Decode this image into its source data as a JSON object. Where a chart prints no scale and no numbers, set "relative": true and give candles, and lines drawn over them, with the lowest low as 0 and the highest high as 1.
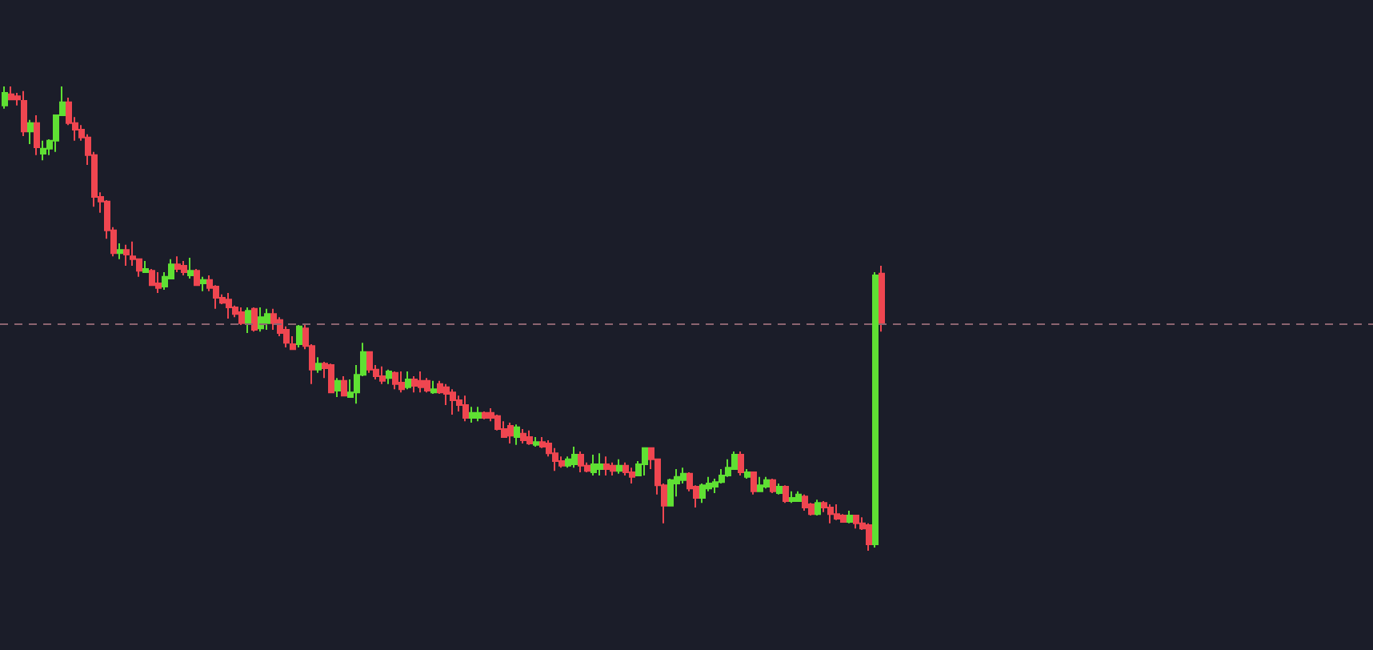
{
  "chart_data": {
    "type": "candlestick",
    "relative": true,
    "categories": [
      null,
      null,
      null,
      null,
      null,
      null,
      null,
      null,
      null,
      null,
      null,
      null,
      null,
      null,
      null,
      null,
      null,
      null,
      null,
      null,
      null,
      null,
      null,
      null,
      null,
      null,
      null,
      null,
      null,
      null,
      null,
      null,
      null,
      null,
      null,
      null,
      null,
      null,
      null,
      null,
      null,
      null,
      null,
      null,
      null,
      null,
      null,
      null,
      null,
      null,
      null,
      null,
      null,
      null,
      null,
      null,
      null,
      null,
      null,
      null,
      null,
      null,
      null,
      null,
      null,
      null,
      null,
      null,
      null,
      null,
      null,
      null,
      null,
      null,
      null,
      null,
      null,
      null,
      null,
      null,
      null,
      null,
      null,
      null,
      null,
      null,
      null,
      null,
      null,
      null,
      null,
      null,
      null,
      null,
      null,
      null,
      null,
      null,
      null,
      null,
      null,
      null,
      null,
      null,
      null,
      null,
      null,
      null,
      null,
      null,
      null,
      null,
      null,
      null,
      null,
      null,
      null,
      null,
      null,
      null,
      null,
      null,
      null,
      null,
      null,
      null,
      null,
      null,
      null,
      null,
      null,
      null,
      null,
      null,
      null,
      null,
      null,
      null
    ],
    "ohlc": [
      [
        0.959,
        1,
        0.952,
        0.986
      ],
      [
        0.983,
        1,
        0.972,
        0.972
      ],
      [
        0.979,
        0.986,
        0.959,
        0.972
      ],
      [
        0.969,
        0.99,
        0.893,
        0.903
      ],
      [
        0.903,
        0.928,
        0.876,
        0.921
      ],
      [
        0.921,
        0.938,
        0.852,
        0.869
      ],
      [
        0.855,
        0.883,
        0.841,
        0.866
      ],
      [
        0.866,
        0.886,
        0.852,
        0.883
      ],
      [
        0.883,
        0.938,
        0.859,
        0.938
      ],
      [
        0.938,
        1,
        0.938,
        0.966
      ],
      [
        0.966,
        0.976,
        0.917,
        0.921
      ],
      [
        0.921,
        0.934,
        0.883,
        0.907
      ],
      [
        0.907,
        0.917,
        0.883,
        0.89
      ],
      [
        0.89,
        0.897,
        0.831,
        0.852
      ],
      [
        0.852,
        0.859,
        0.741,
        0.762
      ],
      [
        0.762,
        0.772,
        0.728,
        0.752
      ],
      [
        0.752,
        0.755,
        0.672,
        0.69
      ],
      [
        0.69,
        0.697,
        0.634,
        0.641
      ],
      [
        0.641,
        0.662,
        0.628,
        0.648
      ],
      [
        0.648,
        0.659,
        0.614,
        0.638
      ],
      [
        0.634,
        0.666,
        0.614,
        0.628
      ],
      [
        0.628,
        0.628,
        0.59,
        0.603
      ],
      [
        0.6,
        0.624,
        0.6,
        0.607
      ],
      [
        0.603,
        0.607,
        0.572,
        0.572
      ],
      [
        0.576,
        0.6,
        0.555,
        0.566
      ],
      [
        0.569,
        0.6,
        0.562,
        0.59
      ],
      [
        0.586,
        0.628,
        0.586,
        0.617
      ],
      [
        0.617,
        0.634,
        0.6,
        0.607
      ],
      [
        0.614,
        0.624,
        0.593,
        0.6
      ],
      [
        0.593,
        0.631,
        0.586,
        0.603
      ],
      [
        0.603,
        0.607,
        0.572,
        0.572
      ],
      [
        0.576,
        0.59,
        0.559,
        0.583
      ],
      [
        0.583,
        0.593,
        0.559,
        0.566
      ],
      [
        0.569,
        0.572,
        0.521,
        0.545
      ],
      [
        0.545,
        0.552,
        0.531,
        0.534
      ],
      [
        0.541,
        0.555,
        0.5,
        0.524
      ],
      [
        0.524,
        0.528,
        0.503,
        0.51
      ],
      [
        0.514,
        0.524,
        0.486,
        0.49
      ],
      [
        0.49,
        0.524,
        0.469,
        0.517
      ],
      [
        0.521,
        0.524,
        0.472,
        0.476
      ],
      [
        0.479,
        0.524,
        0.472,
        0.503
      ],
      [
        0.49,
        0.521,
        0.476,
        0.51
      ],
      [
        0.51,
        0.521,
        0.476,
        0.49
      ],
      [
        0.497,
        0.503,
        0.462,
        0.469
      ],
      [
        0.476,
        0.483,
        0.438,
        0.448
      ],
      [
        0.445,
        0.462,
        0.434,
        0.434
      ],
      [
        0.445,
        0.486,
        0.438,
        0.483
      ],
      [
        0.479,
        0.486,
        0.434,
        0.441
      ],
      [
        0.441,
        0.445,
        0.359,
        0.39
      ],
      [
        0.39,
        0.417,
        0.383,
        0.403
      ],
      [
        0.403,
        0.407,
        0.372,
        0.393
      ],
      [
        0.4,
        0.403,
        0.341,
        0.341
      ],
      [
        0.345,
        0.372,
        0.331,
        0.366
      ],
      [
        0.366,
        0.376,
        0.334,
        0.334
      ],
      [
        0.331,
        0.369,
        0.331,
        0.341
      ],
      [
        0.341,
        0.4,
        0.317,
        0.379
      ],
      [
        0.379,
        0.448,
        0.376,
        0.428
      ],
      [
        0.428,
        0.428,
        0.383,
        0.39
      ],
      [
        0.39,
        0.4,
        0.369,
        0.376
      ],
      [
        0.376,
        0.397,
        0.359,
        0.366
      ],
      [
        0.372,
        0.39,
        0.359,
        0.386
      ],
      [
        0.383,
        0.386,
        0.348,
        0.359
      ],
      [
        0.362,
        0.386,
        0.341,
        0.348
      ],
      [
        0.352,
        0.386,
        0.348,
        0.369
      ],
      [
        0.369,
        0.376,
        0.341,
        0.355
      ],
      [
        0.366,
        0.386,
        0.341,
        0.352
      ],
      [
        0.366,
        0.372,
        0.341,
        0.345
      ],
      [
        0.341,
        0.366,
        0.338,
        0.348
      ],
      [
        0.359,
        0.366,
        0.338,
        0.341
      ],
      [
        0.352,
        0.359,
        0.314,
        0.338
      ],
      [
        0.341,
        0.348,
        0.293,
        0.324
      ],
      [
        0.324,
        0.334,
        0.3,
        0.314
      ],
      [
        0.314,
        0.334,
        0.279,
        0.286
      ],
      [
        0.286,
        0.31,
        0.276,
        0.297
      ],
      [
        0.286,
        0.31,
        0.279,
        0.297
      ],
      [
        0.297,
        0.3,
        0.283,
        0.286
      ],
      [
        0.297,
        0.307,
        0.279,
        0.286
      ],
      [
        0.29,
        0.293,
        0.259,
        0.262
      ],
      [
        0.262,
        0.279,
        0.245,
        0.245
      ],
      [
        0.269,
        0.276,
        0.231,
        0.248
      ],
      [
        0.245,
        0.272,
        0.228,
        0.266
      ],
      [
        0.252,
        0.262,
        0.231,
        0.238
      ],
      [
        0.245,
        0.259,
        0.228,
        0.231
      ],
      [
        0.228,
        0.245,
        0.224,
        0.234
      ],
      [
        0.234,
        0.245,
        0.221,
        0.224
      ],
      [
        0.231,
        0.238,
        0.203,
        0.21
      ],
      [
        0.21,
        0.221,
        0.172,
        0.193
      ],
      [
        0.193,
        0.203,
        0.179,
        0.183
      ],
      [
        0.183,
        0.203,
        0.179,
        0.197
      ],
      [
        0.186,
        0.224,
        0.179,
        0.207
      ],
      [
        0.207,
        0.214,
        0.169,
        0.183
      ],
      [
        0.183,
        0.19,
        0.169,
        0.172
      ],
      [
        0.169,
        0.207,
        0.162,
        0.186
      ],
      [
        0.176,
        0.21,
        0.162,
        0.186
      ],
      [
        0.186,
        0.203,
        0.162,
        0.176
      ],
      [
        0.183,
        0.19,
        0.162,
        0.172
      ],
      [
        0.172,
        0.197,
        0.166,
        0.183
      ],
      [
        0.183,
        0.19,
        0.162,
        0.169
      ],
      [
        0.169,
        0.179,
        0.145,
        0.159
      ],
      [
        0.162,
        0.193,
        0.162,
        0.186
      ],
      [
        0.186,
        0.221,
        0.162,
        0.221
      ],
      [
        0.221,
        0.221,
        0.176,
        0.197
      ],
      [
        0.197,
        0.197,
        0.121,
        0.141
      ],
      [
        0.141,
        0.145,
        0.059,
        0.097
      ],
      [
        0.097,
        0.155,
        0.097,
        0.152
      ],
      [
        0.145,
        0.176,
        0.117,
        0.159
      ],
      [
        0.152,
        0.179,
        0.145,
        0.166
      ],
      [
        0.166,
        0.169,
        0.128,
        0.134
      ],
      [
        0.138,
        0.141,
        0.093,
        0.114
      ],
      [
        0.114,
        0.145,
        0.103,
        0.141
      ],
      [
        0.134,
        0.159,
        0.128,
        0.145
      ],
      [
        0.138,
        0.155,
        0.124,
        0.148
      ],
      [
        0.148,
        0.176,
        0.145,
        0.162
      ],
      [
        0.162,
        0.197,
        0.159,
        0.179
      ],
      [
        0.176,
        0.214,
        0.176,
        0.207
      ],
      [
        0.207,
        0.214,
        0.162,
        0.169
      ],
      [
        0.159,
        0.176,
        0.155,
        0.169
      ],
      [
        0.169,
        0.169,
        0.121,
        0.128
      ],
      [
        0.128,
        0.159,
        0.128,
        0.141
      ],
      [
        0.138,
        0.159,
        0.134,
        0.152
      ],
      [
        0.152,
        0.155,
        0.124,
        0.128
      ],
      [
        0.124,
        0.145,
        0.121,
        0.138
      ],
      [
        0.138,
        0.141,
        0.103,
        0.107
      ],
      [
        0.107,
        0.128,
        0.103,
        0.114
      ],
      [
        0.107,
        0.128,
        0.107,
        0.121
      ],
      [
        0.117,
        0.121,
        0.086,
        0.093
      ],
      [
        0.1,
        0.103,
        0.076,
        0.079
      ],
      [
        0.079,
        0.11,
        0.076,
        0.103
      ],
      [
        0.103,
        0.107,
        0.083,
        0.093
      ],
      [
        0.093,
        0.1,
        0.059,
        0.079
      ],
      [
        0.079,
        0.1,
        0.066,
        0.069
      ],
      [
        0.076,
        0.079,
        0.062,
        0.062
      ],
      [
        0.062,
        0.086,
        0.059,
        0.076
      ],
      [
        0.076,
        0.076,
        0.048,
        0.059
      ],
      [
        0.059,
        0.072,
        0.045,
        0.048
      ],
      [
        0.055,
        0.059,
        0,
        0.014
      ],
      [
        0.014,
        0.6,
        0.007,
        0.593
      ],
      [
        0.597,
        0.614,
        0.472,
        0.49
      ]
    ],
    "ref_lines": [
      {
        "axis": "y",
        "value": 0.493,
        "color": "#8c6470",
        "line_style": "dashed"
      }
    ]
  }
}
